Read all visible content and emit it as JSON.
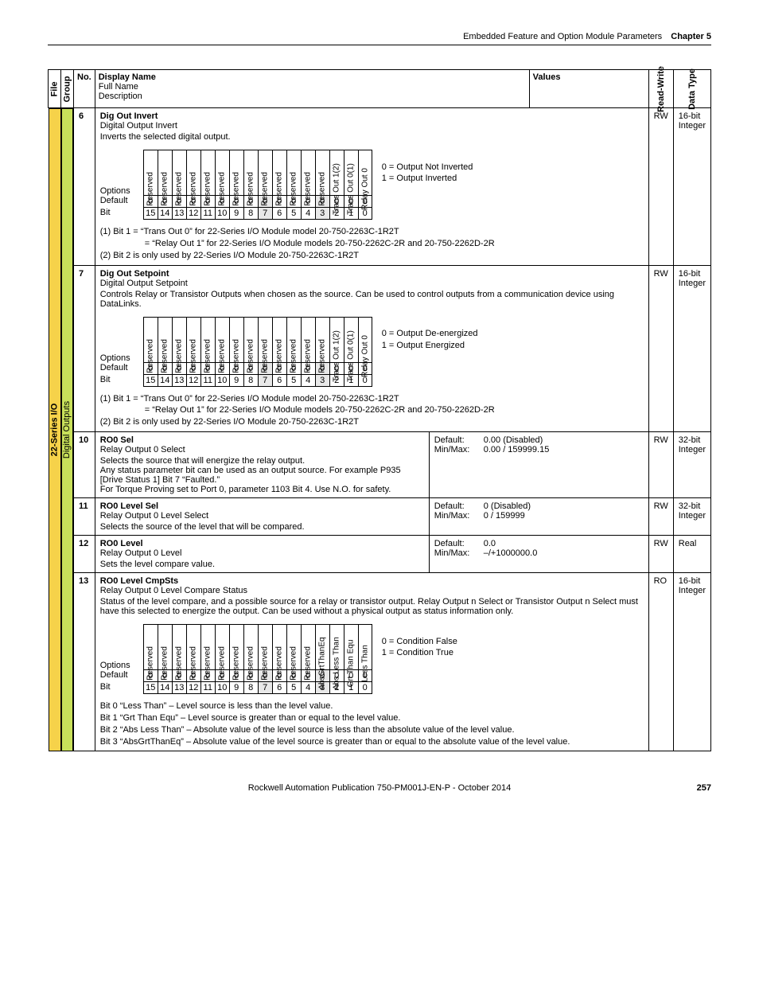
{
  "header": {
    "section": "Embedded Feature and Option Module Parameters",
    "chapter": "Chapter 5"
  },
  "cols": {
    "file": "File",
    "group": "Group",
    "no": "No.",
    "display_name": "Display Name",
    "full_name": "Full Name",
    "description": "Description",
    "values": "Values",
    "rw": "Read-Write",
    "dt": "Data Type"
  },
  "sidebars": {
    "file": "22-Series I/O",
    "group": "Digital Outputs"
  },
  "bits_opts_label": "Options",
  "bits_def_label": "Default",
  "bits_bit_label": "Bit",
  "bits_numbers": [
    "15",
    "14",
    "13",
    "12",
    "11",
    "10",
    "9",
    "8",
    "7",
    "6",
    "5",
    "4",
    "3",
    "2",
    "1",
    "0"
  ],
  "bits_defaults": [
    "0",
    "0",
    "0",
    "0",
    "0",
    "0",
    "0",
    "0",
    "0",
    "0",
    "0",
    "0",
    "0",
    "0",
    "0",
    "0"
  ],
  "p6": {
    "no": "6",
    "name": "Dig Out Invert",
    "full": "Digital Output Invert",
    "desc": "Inverts the selected digital output.",
    "rw": "RW",
    "dt1": "16-bit",
    "dt2": "Integer",
    "options": [
      "Reserved",
      "Reserved",
      "Reserved",
      "Reserved",
      "Reserved",
      "Reserved",
      "Reserved",
      "Reserved",
      "Reserved",
      "Reserved",
      "Reserved",
      "Reserved",
      "Reserved",
      "Trans Out 1(2)",
      "Trans Out 0(1)",
      "Relay Out 0"
    ],
    "expl0": "0 = Output Not Inverted",
    "expl1": "1 = Output Inverted",
    "n1": "(1) Bit 1   = “Trans Out 0” for 22-Series I/O Module model 20-750-2263C-1R2T",
    "n1b": "= “Relay Out 1” for 22-Series I/O Module models 20-750-2262C-2R and 20-750-2262D-2R",
    "n2": "(2) Bit 2 is only used by 22-Series I/O Module 20-750-2263C-1R2T"
  },
  "p7": {
    "no": "7",
    "name": "Dig Out Setpoint",
    "full": "Digital Output Setpoint",
    "desc": "Controls Relay or Transistor Outputs when chosen as the source. Can be used to control outputs from a communication device using DataLinks.",
    "rw": "RW",
    "dt1": "16-bit",
    "dt2": "Integer",
    "options": [
      "Reserved",
      "Reserved",
      "Reserved",
      "Reserved",
      "Reserved",
      "Reserved",
      "Reserved",
      "Reserved",
      "Reserved",
      "Reserved",
      "Reserved",
      "Reserved",
      "Reserved",
      "Trans Out 1(2)",
      "Trans Out 0(1)",
      "Relay Out 0"
    ],
    "expl0": "0 = Output De-energized",
    "expl1": "1 = Output Energized",
    "n1": "(1) Bit 1   = “Trans Out 0” for 22-Series I/O Module model 20-750-2263C-1R2T",
    "n1b": "= “Relay Out 1” for 22-Series I/O Module models 20-750-2262C-2R and 20-750-2262D-2R",
    "n2": "(2) Bit 2 is only used by 22-Series I/O Module 20-750-2263C-1R2T"
  },
  "p10": {
    "no": "10",
    "name": "RO0 Sel",
    "full": "Relay Output 0 Select",
    "d1": "Selects the source that will energize the relay output.",
    "d2": "Any status parameter bit can be used as an output source. For example P935 [Drive Status 1] Bit 7 “Faulted.”",
    "d3": "For Torque Proving set to Port 0, parameter 1103 Bit 4. Use N.O. for safety.",
    "vl1a": "Default:",
    "vl1b": "0.00 (Disabled)",
    "vl2a": "Min/Max:",
    "vl2b": "0.00 / 159999.15",
    "rw": "RW",
    "dt1": "32-bit",
    "dt2": "Integer"
  },
  "p11": {
    "no": "11",
    "name": "RO0 Level Sel",
    "full": "Relay Output 0 Level Select",
    "d1": "Selects the source of the level that will be compared.",
    "vl1a": "Default:",
    "vl1b": "0 (Disabled)",
    "vl2a": "Min/Max:",
    "vl2b": "0 / 159999",
    "rw": "RW",
    "dt1": "32-bit",
    "dt2": "Integer"
  },
  "p12": {
    "no": "12",
    "name": "RO0 Level",
    "full": "Relay Output 0 Level",
    "d1": "Sets the level compare value.",
    "vl1a": "Default:",
    "vl1b": "0.0",
    "vl2a": "Min/Max:",
    "vl2b": "–/+1000000.0",
    "rw": "RW",
    "dt1": "Real",
    "dt2": ""
  },
  "p13": {
    "no": "13",
    "name": "RO0 Level CmpSts",
    "full": "Relay Output 0 Level Compare Status",
    "desc": "Status of the level compare, and a possible source for a relay or transistor output. Relay Output n Select or Transistor Output n Select must have this selected to energize the output. Can be used without a physical output as status information only.",
    "rw": "RO",
    "dt1": "16-bit",
    "dt2": "Integer",
    "options": [
      "Reserved",
      "Reserved",
      "Reserved",
      "Reserved",
      "Reserved",
      "Reserved",
      "Reserved",
      "Reserved",
      "Reserved",
      "Reserved",
      "Reserved",
      "Reserved",
      "AbsGrtThanEq",
      "Abs Less Than",
      "Grt Than Equ",
      "Less Than"
    ],
    "expl0": "0 = Condition False",
    "expl1": "1 = Condition True",
    "n0": "Bit 0 “Less Than” – Level source is less than the level value.",
    "n1": "Bit 1 “Grt Than Equ” – Level source is greater than or equal to the level value.",
    "n2": "Bit 2 “Abs Less Than” – Absolute value of the level source is less than the absolute value of the level value.",
    "n3": "Bit 3 “AbsGrtThanEq” – Absolute value of the level source is greater than or equal to the absolute value of the level value."
  },
  "footer": {
    "pub": "Rockwell Automation Publication 750-PM001J-EN-P - October 2014",
    "page": "257"
  }
}
